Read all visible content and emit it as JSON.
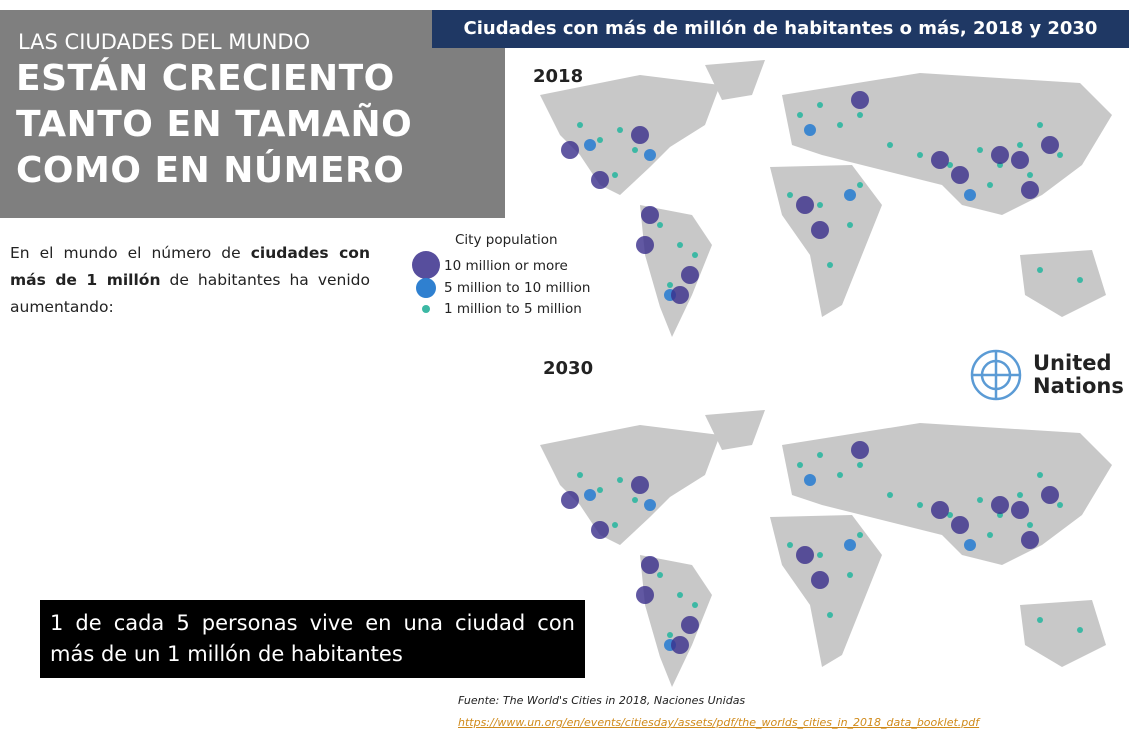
{
  "header": {
    "kicker": "LAS CIUDADES DEL MUNDO",
    "title_lines": [
      "ESTÁN CRECIENTO",
      "TANTO EN TAMAÑO",
      "COMO EN NÚMERO"
    ]
  },
  "banner": "Ciudades con más de  millón de habitantes o más, 2018 y 2030",
  "maps": [
    {
      "label": "2018"
    },
    {
      "label": "2030"
    }
  ],
  "intro": {
    "parts": [
      "En el mundo el número de ",
      "ciudades con más de 1 millón",
      " de habitantes ha venido aumentando:"
    ]
  },
  "legend": {
    "title": "City population",
    "items": [
      "10 million or more",
      "5 million to 10 million",
      "1 million to 5 million"
    ]
  },
  "logo": {
    "lines": [
      "United",
      "Nations"
    ]
  },
  "callout": "1 de cada 5 personas vive en una ciudad con más de un 1 millón de habitantes",
  "source": {
    "text": "Fuente: The World's Cities in 2018, Naciones Unidas",
    "url": "https://www.un.org/en/events/citiesday/assets/pdf/the_worlds_cities_in_2018_data_booklet.pdf"
  }
}
